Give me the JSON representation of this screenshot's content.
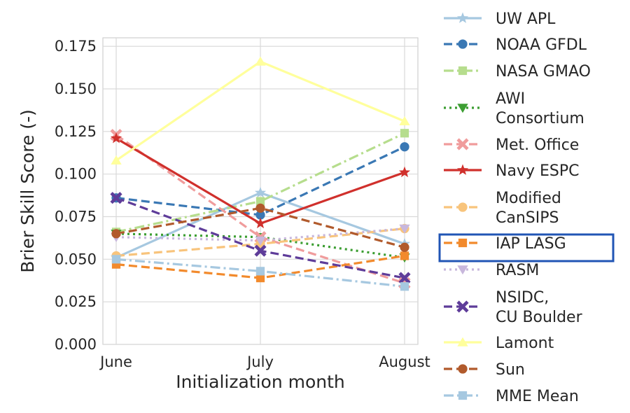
{
  "chart_data": {
    "type": "line",
    "title": "",
    "xlabel": "Initialization month",
    "ylabel": "Brier Skill Score (-)",
    "categories": [
      "June",
      "July",
      "August"
    ],
    "ylim": [
      0,
      0.18
    ],
    "yticks": [
      "0.000",
      "0.025",
      "0.050",
      "0.075",
      "0.100",
      "0.125",
      "0.150",
      "0.175"
    ],
    "grid": true,
    "legend_position": "right",
    "highlighted_legend_entry": "IAP LASG",
    "highlight_color": "#2155b5",
    "series": [
      {
        "name": "UW APL",
        "values": [
          0.051,
          0.089,
          0.059
        ],
        "color": "#a6c8e0",
        "dash": "solid",
        "marker": "star"
      },
      {
        "name": "NOAA GFDL",
        "values": [
          0.086,
          0.076,
          0.116
        ],
        "color": "#3a78b4",
        "dash": "dash",
        "marker": "circle"
      },
      {
        "name": "NASA GMAO",
        "values": [
          0.066,
          0.084,
          0.124
        ],
        "color": "#b6dd8d",
        "dash": "dashdot",
        "marker": "square"
      },
      {
        "name": "AWI Consortium",
        "label_lines": [
          "AWI",
          "Consortium"
        ],
        "values": [
          0.065,
          0.063,
          0.051
        ],
        "color": "#3c9e32",
        "dash": "dot",
        "marker": "triangle-down"
      },
      {
        "name": "Met. Office",
        "values": [
          0.123,
          0.063,
          0.036
        ],
        "color": "#f09c9c",
        "dash": "dash",
        "marker": "x"
      },
      {
        "name": "Navy ESPC",
        "values": [
          0.121,
          0.071,
          0.101
        ],
        "color": "#d0302c",
        "dash": "solid",
        "marker": "star"
      },
      {
        "name": "Modified CanSIPS",
        "label_lines": [
          "Modified",
          "CanSIPS"
        ],
        "values": [
          0.052,
          0.059,
          0.068
        ],
        "color": "#f8c47c",
        "dash": "dash",
        "marker": "circle"
      },
      {
        "name": "IAP LASG",
        "values": [
          0.047,
          0.039,
          0.052
        ],
        "color": "#f28a2c",
        "dash": "dash",
        "marker": "square"
      },
      {
        "name": "RASM",
        "values": [
          0.063,
          0.061,
          0.068
        ],
        "color": "#c8b7dc",
        "dash": "dot",
        "marker": "triangle-down"
      },
      {
        "name": "NSIDC, CU Boulder",
        "label_lines": [
          "NSIDC,",
          "CU Boulder"
        ],
        "values": [
          0.086,
          0.055,
          0.039
        ],
        "color": "#5e3c99",
        "dash": "dash",
        "marker": "x"
      },
      {
        "name": "Lamont",
        "values": [
          0.108,
          0.166,
          0.131
        ],
        "color": "#ffff9c",
        "dash": "solid",
        "marker": "triangle-up"
      },
      {
        "name": "Sun",
        "values": [
          0.065,
          0.08,
          0.057
        ],
        "color": "#b15a2c",
        "dash": "dash",
        "marker": "circle"
      },
      {
        "name": "MME Mean",
        "values": [
          0.05,
          0.043,
          0.034
        ],
        "color": "#a6c8e0",
        "dash": "dashdot",
        "marker": "square"
      }
    ]
  }
}
